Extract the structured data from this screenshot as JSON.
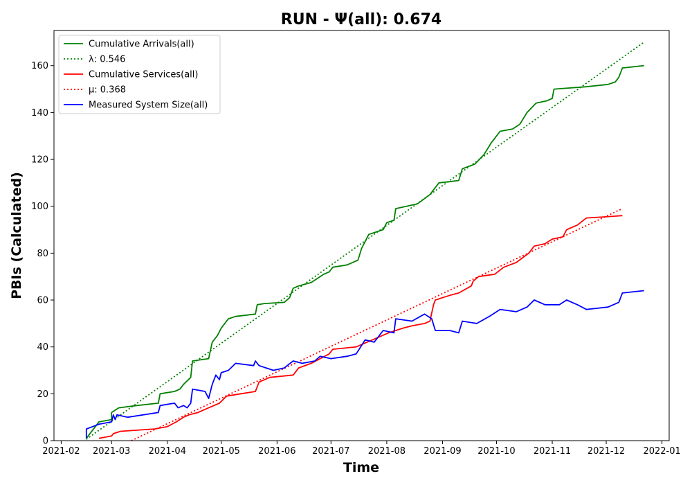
{
  "chart_data": {
    "type": "line",
    "title": "RUN -  Ψ(all): 0.674",
    "xlabel": "Time",
    "ylabel": "PBIs (Calculated)",
    "xlim": [
      "2021-01-28",
      "2022-01-05"
    ],
    "ylim": [
      0,
      175
    ],
    "x_ticks": [
      "2021-02",
      "2021-03",
      "2021-04",
      "2021-05",
      "2021-06",
      "2021-07",
      "2021-08",
      "2021-09",
      "2021-10",
      "2021-11",
      "2021-12",
      "2022-01"
    ],
    "y_ticks": [
      0,
      20,
      40,
      60,
      80,
      100,
      120,
      140,
      160
    ],
    "grid": false,
    "legend_position": "top-left",
    "series": [
      {
        "name": "Cumulative Arrivals(all)",
        "color": "#008000",
        "style": "solid",
        "points": [
          [
            "2021-02-15",
            1
          ],
          [
            "2021-02-22",
            8
          ],
          [
            "2021-03-01",
            9
          ],
          [
            "2021-03-01",
            12
          ],
          [
            "2021-03-05",
            14
          ],
          [
            "2021-03-15",
            15
          ],
          [
            "2021-03-27",
            16
          ],
          [
            "2021-03-28",
            20
          ],
          [
            "2021-04-05",
            21
          ],
          [
            "2021-04-08",
            22
          ],
          [
            "2021-04-10",
            24
          ],
          [
            "2021-04-14",
            27
          ],
          [
            "2021-04-15",
            34
          ],
          [
            "2021-04-24",
            35
          ],
          [
            "2021-04-26",
            42
          ],
          [
            "2021-04-29",
            45
          ],
          [
            "2021-05-01",
            48
          ],
          [
            "2021-05-05",
            52
          ],
          [
            "2021-05-09",
            53
          ],
          [
            "2021-05-20",
            54
          ],
          [
            "2021-05-21",
            58
          ],
          [
            "2021-05-25",
            58.5
          ],
          [
            "2021-06-05",
            59
          ],
          [
            "2021-06-08",
            61
          ],
          [
            "2021-06-10",
            65
          ],
          [
            "2021-06-13",
            66
          ],
          [
            "2021-06-20",
            67.5
          ],
          [
            "2021-06-23",
            69
          ],
          [
            "2021-06-27",
            71
          ],
          [
            "2021-06-30",
            72
          ],
          [
            "2021-07-02",
            74
          ],
          [
            "2021-07-10",
            75
          ],
          [
            "2021-07-16",
            77
          ],
          [
            "2021-07-18",
            82
          ],
          [
            "2021-07-22",
            88
          ],
          [
            "2021-07-30",
            90
          ],
          [
            "2021-08-01",
            93
          ],
          [
            "2021-08-05",
            94
          ],
          [
            "2021-08-06",
            99
          ],
          [
            "2021-08-18",
            101
          ],
          [
            "2021-08-25",
            105
          ],
          [
            "2021-08-30",
            110
          ],
          [
            "2021-09-05",
            110.5
          ],
          [
            "2021-09-10",
            111
          ],
          [
            "2021-09-12",
            116
          ],
          [
            "2021-09-19",
            118
          ],
          [
            "2021-09-24",
            122
          ],
          [
            "2021-09-28",
            127
          ],
          [
            "2021-10-03",
            132
          ],
          [
            "2021-10-10",
            133
          ],
          [
            "2021-10-14",
            135
          ],
          [
            "2021-10-18",
            140
          ],
          [
            "2021-10-23",
            144
          ],
          [
            "2021-10-29",
            145
          ],
          [
            "2021-11-01",
            146
          ],
          [
            "2021-11-02",
            150
          ],
          [
            "2021-11-20",
            151
          ],
          [
            "2021-12-02",
            152
          ],
          [
            "2021-12-06",
            153
          ],
          [
            "2021-12-08",
            155
          ],
          [
            "2021-12-10",
            159
          ],
          [
            "2021-12-22",
            160
          ]
        ]
      },
      {
        "name": "λ: 0.546",
        "color": "#008000",
        "style": "dotted",
        "points": [
          [
            "2021-02-15",
            0.6
          ],
          [
            "2021-12-22",
            170
          ]
        ]
      },
      {
        "name": "Cumulative Services(all)",
        "color": "#ff0000",
        "style": "solid",
        "points": [
          [
            "2021-02-22",
            1
          ],
          [
            "2021-03-01",
            2
          ],
          [
            "2021-03-02",
            3
          ],
          [
            "2021-03-06",
            4
          ],
          [
            "2021-03-25",
            5
          ],
          [
            "2021-04-01",
            6
          ],
          [
            "2021-04-06",
            8
          ],
          [
            "2021-04-10",
            10
          ],
          [
            "2021-04-13",
            11
          ],
          [
            "2021-04-18",
            12
          ],
          [
            "2021-04-24",
            14
          ],
          [
            "2021-04-30",
            16
          ],
          [
            "2021-05-04",
            19
          ],
          [
            "2021-05-12",
            20
          ],
          [
            "2021-05-20",
            21
          ],
          [
            "2021-05-22",
            25
          ],
          [
            "2021-05-28",
            27
          ],
          [
            "2021-06-10",
            28
          ],
          [
            "2021-06-13",
            31
          ],
          [
            "2021-06-20",
            33
          ],
          [
            "2021-06-30",
            37
          ],
          [
            "2021-07-02",
            39
          ],
          [
            "2021-07-15",
            40
          ],
          [
            "2021-07-27",
            44
          ],
          [
            "2021-08-02",
            46
          ],
          [
            "2021-08-10",
            48
          ],
          [
            "2021-08-15",
            49
          ],
          [
            "2021-08-22",
            50
          ],
          [
            "2021-08-25",
            51
          ],
          [
            "2021-08-27",
            58
          ],
          [
            "2021-08-28",
            60
          ],
          [
            "2021-09-05",
            62
          ],
          [
            "2021-09-10",
            63
          ],
          [
            "2021-09-17",
            66
          ],
          [
            "2021-09-18",
            68
          ],
          [
            "2021-09-21",
            70
          ],
          [
            "2021-09-30",
            71
          ],
          [
            "2021-10-05",
            74
          ],
          [
            "2021-10-12",
            76
          ],
          [
            "2021-10-19",
            80
          ],
          [
            "2021-10-22",
            83
          ],
          [
            "2021-10-28",
            84
          ],
          [
            "2021-11-01",
            86
          ],
          [
            "2021-11-07",
            87
          ],
          [
            "2021-11-09",
            90
          ],
          [
            "2021-11-15",
            92
          ],
          [
            "2021-11-20",
            95
          ],
          [
            "2021-12-01",
            95.5
          ],
          [
            "2021-12-10",
            96
          ]
        ]
      },
      {
        "name": "μ: 0.368",
        "color": "#ff0000",
        "style": "dotted",
        "points": [
          [
            "2021-03-12",
            0
          ],
          [
            "2021-12-10",
            99
          ]
        ]
      },
      {
        "name": "Measured System Size(all)",
        "color": "#0000ff",
        "style": "solid",
        "points": [
          [
            "2021-02-15",
            1
          ],
          [
            "2021-02-15",
            5
          ],
          [
            "2021-02-22",
            7
          ],
          [
            "2021-03-01",
            8
          ],
          [
            "2021-03-02",
            11
          ],
          [
            "2021-03-03",
            9
          ],
          [
            "2021-03-04",
            11
          ],
          [
            "2021-03-10",
            10
          ],
          [
            "2021-03-27",
            12
          ],
          [
            "2021-03-28",
            15
          ],
          [
            "2021-04-05",
            16
          ],
          [
            "2021-04-07",
            14
          ],
          [
            "2021-04-10",
            15
          ],
          [
            "2021-04-12",
            14
          ],
          [
            "2021-04-14",
            16
          ],
          [
            "2021-04-15",
            22
          ],
          [
            "2021-04-22",
            21
          ],
          [
            "2021-04-24",
            18
          ],
          [
            "2021-04-26",
            24
          ],
          [
            "2021-04-28",
            28
          ],
          [
            "2021-04-30",
            26
          ],
          [
            "2021-05-01",
            29
          ],
          [
            "2021-05-05",
            30
          ],
          [
            "2021-05-09",
            33
          ],
          [
            "2021-05-19",
            32
          ],
          [
            "2021-05-20",
            34
          ],
          [
            "2021-05-22",
            32
          ],
          [
            "2021-05-30",
            30
          ],
          [
            "2021-06-05",
            31
          ],
          [
            "2021-06-10",
            34
          ],
          [
            "2021-06-15",
            33
          ],
          [
            "2021-06-22",
            34
          ],
          [
            "2021-06-25",
            36
          ],
          [
            "2021-07-01",
            35
          ],
          [
            "2021-07-10",
            36
          ],
          [
            "2021-07-15",
            37
          ],
          [
            "2021-07-20",
            43
          ],
          [
            "2021-07-25",
            42
          ],
          [
            "2021-07-30",
            47
          ],
          [
            "2021-08-05",
            46
          ],
          [
            "2021-08-06",
            52
          ],
          [
            "2021-08-15",
            51
          ],
          [
            "2021-08-22",
            54
          ],
          [
            "2021-08-26",
            52
          ],
          [
            "2021-08-28",
            47
          ],
          [
            "2021-09-05",
            47
          ],
          [
            "2021-09-10",
            46
          ],
          [
            "2021-09-12",
            51
          ],
          [
            "2021-09-20",
            50
          ],
          [
            "2021-09-27",
            53
          ],
          [
            "2021-10-03",
            56
          ],
          [
            "2021-10-12",
            55
          ],
          [
            "2021-10-18",
            57
          ],
          [
            "2021-10-22",
            60
          ],
          [
            "2021-10-28",
            58
          ],
          [
            "2021-11-05",
            58
          ],
          [
            "2021-11-09",
            60
          ],
          [
            "2021-11-15",
            58
          ],
          [
            "2021-11-20",
            56
          ],
          [
            "2021-12-02",
            57
          ],
          [
            "2021-12-08",
            59
          ],
          [
            "2021-12-10",
            63
          ],
          [
            "2021-12-22",
            64
          ]
        ]
      }
    ]
  }
}
